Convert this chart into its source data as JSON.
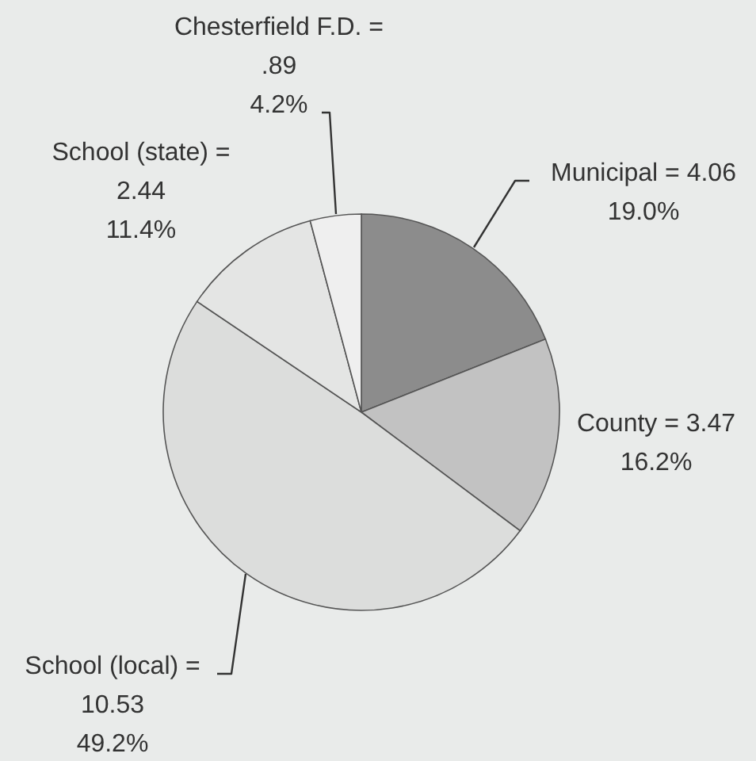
{
  "chart_data": {
    "type": "pie",
    "categories": [
      "Municipal",
      "County",
      "School (local)",
      "School (state)",
      "Chesterfield F.D."
    ],
    "values": [
      4.06,
      3.47,
      10.53,
      2.44,
      0.89
    ],
    "colors": [
      "#8c8c8c",
      "#c2c2c2",
      "#dcdddc",
      "#e4e5e4",
      "#efefef"
    ],
    "value_labels": [
      "= 4.06\n19.0%",
      "= 3.47\n16.2%",
      "=\n10.53\n49.2%",
      "=\n2.44\n11.4%",
      "=\n.89\n4.2%"
    ]
  }
}
